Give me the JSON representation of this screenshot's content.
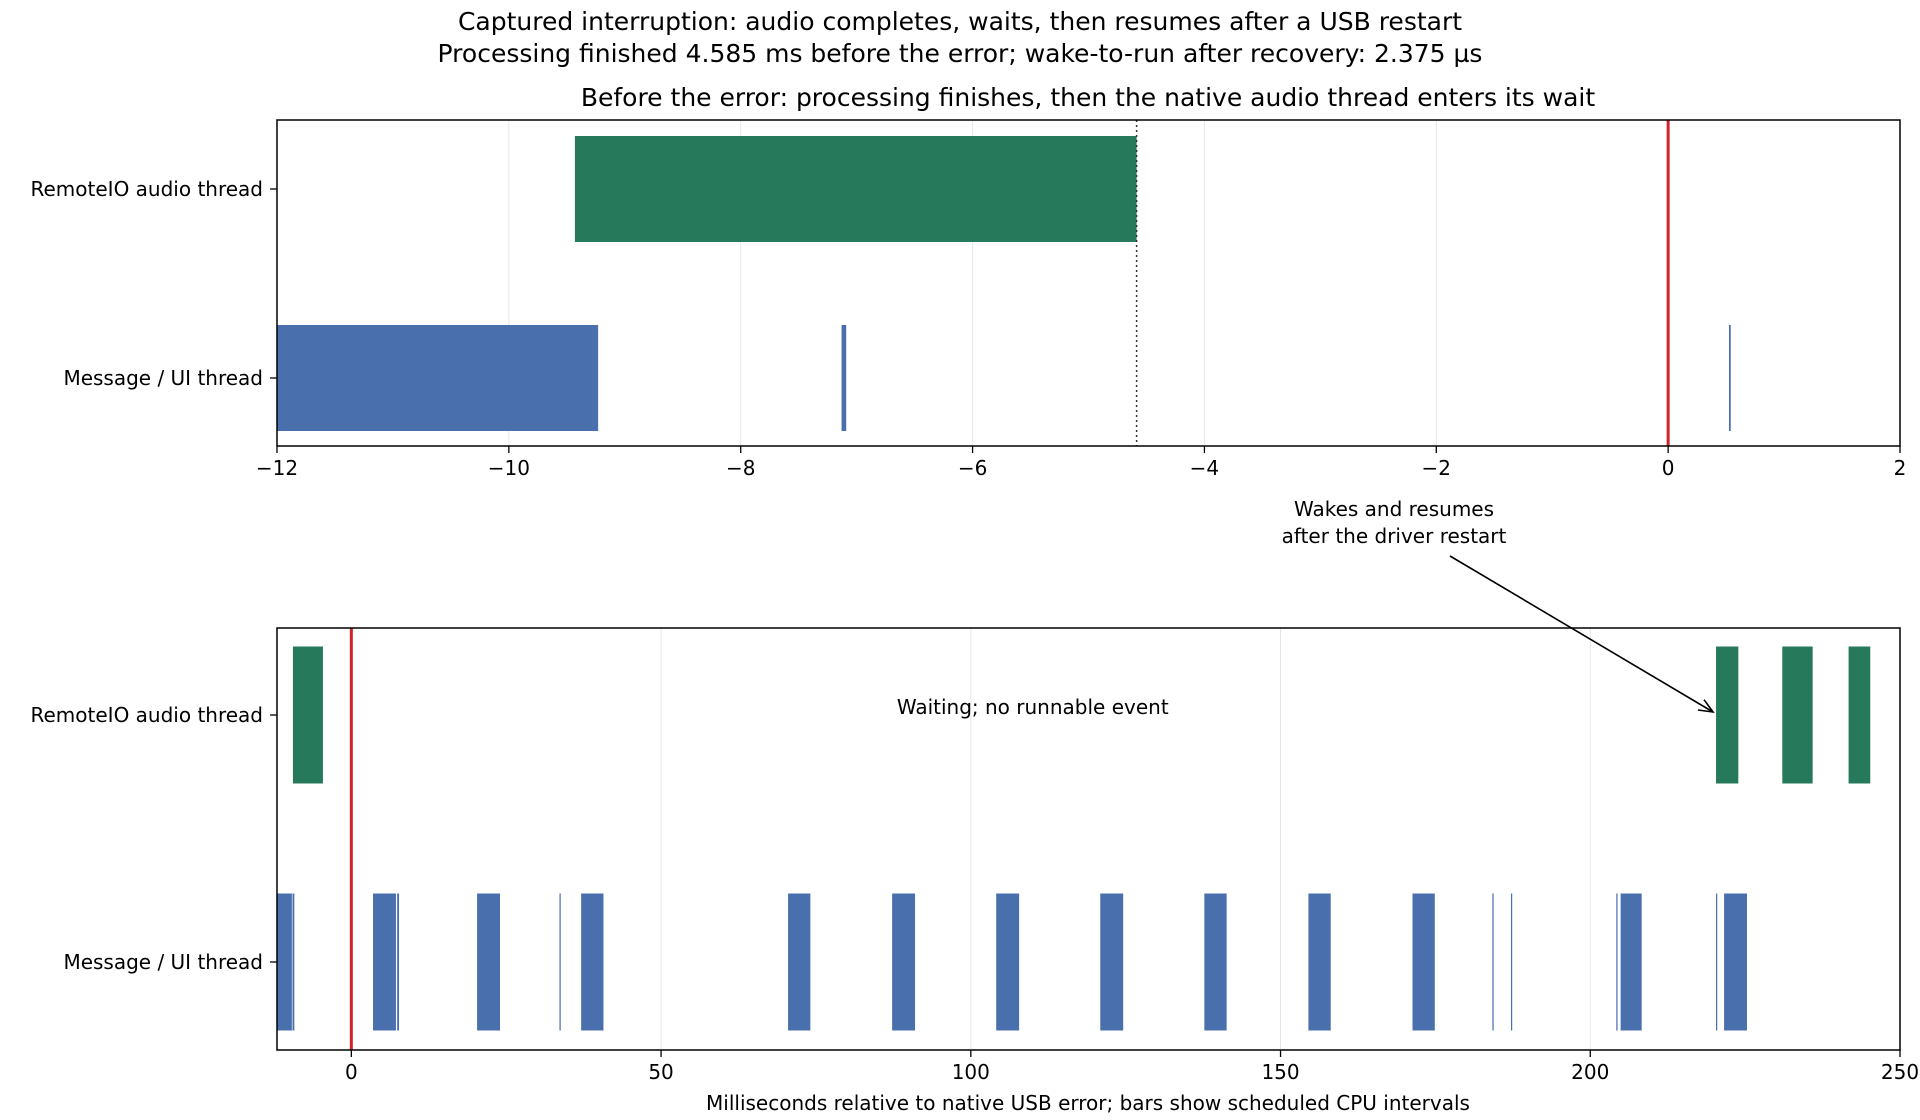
{
  "figure": {
    "title_line1": "Captured interruption: audio completes, waits, then resumes after a USB restart",
    "title_line2": "Processing finished 4.585 ms before the error; wake-to-run after recovery: 2.375 µs"
  },
  "colors": {
    "audio": "#267a5b",
    "ui": "#4a6fad",
    "error_line": "#d1242a",
    "marker_line": "#333333",
    "grid": "#e6e6e6"
  },
  "chart_data": [
    {
      "type": "broken_barh",
      "title": "Before the error: processing finishes, then the native audio thread enters its wait",
      "xlabel": "",
      "xlim": [
        -12,
        2
      ],
      "xticks": [
        -12,
        -10,
        -8,
        -6,
        -4,
        -2,
        0,
        2
      ],
      "xtick_labels": [
        "−12",
        "−10",
        "−8",
        "−6",
        "−4",
        "−2",
        "0",
        "2"
      ],
      "grid": "vertical",
      "rows": [
        {
          "label": "RemoteIO audio thread",
          "color": "audio",
          "intervals": [
            [
              -9.43,
              -4.585
            ]
          ]
        },
        {
          "label": "Message / UI thread",
          "color": "ui",
          "intervals": [
            [
              -12.0,
              -9.23
            ],
            [
              -7.13,
              -7.09
            ],
            [
              0.525,
              0.54
            ]
          ]
        }
      ],
      "vlines": [
        {
          "x": 0,
          "style": "solid",
          "color": "error_line"
        },
        {
          "x": -4.585,
          "style": "dotted",
          "color": "marker_line"
        }
      ]
    },
    {
      "type": "broken_barh",
      "title": "",
      "xlabel": "Milliseconds relative to native USB error; bars show scheduled CPU intervals",
      "xlim": [
        -12,
        250
      ],
      "xticks": [
        0,
        50,
        100,
        150,
        200,
        250
      ],
      "xtick_labels": [
        "0",
        "50",
        "100",
        "150",
        "200",
        "250"
      ],
      "grid": "vertical",
      "rows": [
        {
          "label": "RemoteIO audio thread",
          "color": "audio",
          "intervals": [
            [
              -9.43,
              -4.585
            ],
            [
              220.3,
              223.9
            ],
            [
              231.0,
              235.9
            ],
            [
              241.7,
              245.2
            ]
          ]
        },
        {
          "label": "Message / UI thread",
          "color": "ui",
          "intervals": [
            [
              -12.0,
              -9.6
            ],
            [
              -9.5,
              -9.2
            ],
            [
              3.5,
              7.2
            ],
            [
              7.4,
              7.7
            ],
            [
              20.3,
              24.0
            ],
            [
              33.6,
              33.8
            ],
            [
              37.1,
              40.7
            ],
            [
              70.5,
              74.1
            ],
            [
              87.3,
              91.0
            ],
            [
              104.1,
              107.8
            ],
            [
              120.9,
              124.6
            ],
            [
              137.7,
              141.3
            ],
            [
              154.5,
              158.1
            ],
            [
              171.3,
              174.9
            ],
            [
              184.2,
              184.4
            ],
            [
              187.2,
              187.4
            ],
            [
              204.2,
              204.4
            ],
            [
              204.9,
              208.3
            ],
            [
              220.3,
              220.5
            ],
            [
              221.6,
              225.3
            ]
          ]
        }
      ],
      "vlines": [
        {
          "x": 0,
          "style": "solid",
          "color": "error_line"
        }
      ],
      "annotations": [
        {
          "text": "Waiting; no runnable event",
          "x": 110,
          "row": 0
        },
        {
          "text_line1": "Wakes and resumes",
          "text_line2": "after the driver restart",
          "target_x": 220.3,
          "target_row": 0
        }
      ]
    }
  ]
}
